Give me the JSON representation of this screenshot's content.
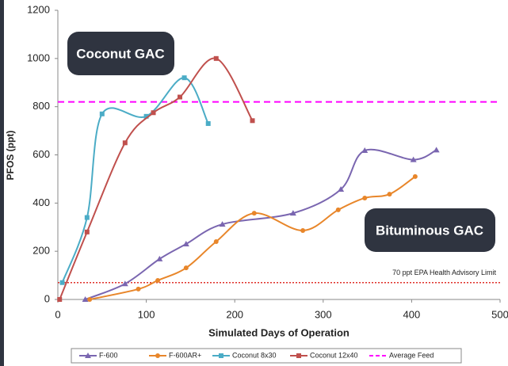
{
  "chart_data": {
    "type": "line",
    "xlabel": "Simulated Days of Operation",
    "ylabel": "PFOS (ppt)",
    "xlim": [
      0,
      500
    ],
    "xticks": [
      0,
      100,
      200,
      300,
      400,
      500
    ],
    "ylim": [
      0,
      1200
    ],
    "yticks": [
      0,
      200,
      400,
      600,
      800,
      1000,
      1200
    ],
    "series": [
      {
        "name": "F-600",
        "color": "#7a66b0",
        "marker": "triangle",
        "x": [
          31,
          76,
          115,
          145,
          186,
          266,
          320,
          347,
          402,
          428
        ],
        "values": [
          0,
          65,
          168,
          230,
          312,
          358,
          457,
          618,
          580,
          620
        ]
      },
      {
        "name": "F-600AR+",
        "color": "#e8862a",
        "marker": "circle",
        "x": [
          36,
          91,
          113,
          145,
          179,
          222,
          277,
          317,
          347,
          375,
          404
        ],
        "values": [
          0,
          43,
          79,
          131,
          240,
          358,
          286,
          372,
          421,
          437,
          510
        ]
      },
      {
        "name": "Coconut 8x30",
        "color": "#4bacc6",
        "marker": "square",
        "x": [
          5,
          33,
          50,
          100,
          143,
          170
        ],
        "values": [
          70,
          340,
          770,
          760,
          920,
          730
        ]
      },
      {
        "name": "Coconut 12x40",
        "color": "#c0504d",
        "marker": "square",
        "x": [
          2,
          33,
          76,
          108,
          138,
          179,
          220
        ],
        "values": [
          0,
          280,
          650,
          775,
          840,
          1000,
          742
        ]
      }
    ],
    "reference_line": {
      "name": "Average Feed",
      "color": "#ff00ff",
      "value": 820
    },
    "limit_line": {
      "label": "70 ppt EPA Health Advisory Limit",
      "color": "#e0302a",
      "value": 70
    },
    "annotations": [
      "Coconut GAC",
      "Bituminous GAC"
    ]
  }
}
